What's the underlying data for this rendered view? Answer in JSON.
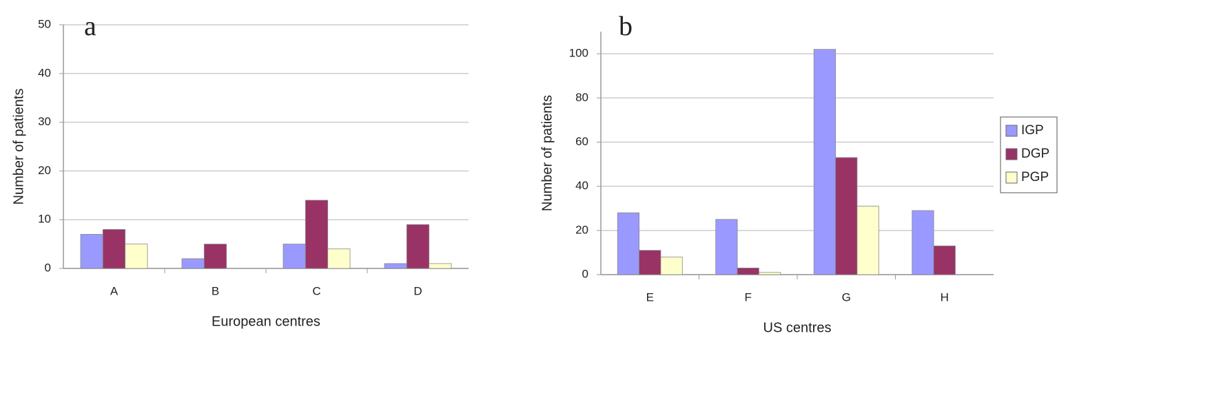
{
  "chart_data": [
    {
      "type": "bar",
      "annotation": "a",
      "x_label": "European centres",
      "y_label": "Number of patients",
      "categories": [
        "A",
        "B",
        "C",
        "D"
      ],
      "series": [
        {
          "color": "#9999ff",
          "values": [
            7,
            2,
            5,
            1
          ]
        },
        {
          "color": "#993366",
          "values": [
            8,
            5,
            14,
            9
          ]
        },
        {
          "color": "#ffffcc",
          "values": [
            5,
            0,
            4,
            1
          ]
        }
      ],
      "ylim": [
        0,
        50
      ],
      "yticks": [
        0,
        10,
        20,
        30,
        40,
        50
      ],
      "grid": true
    },
    {
      "type": "bar",
      "annotation": "b",
      "x_label": "US centres",
      "y_label": "Number of patients",
      "categories": [
        "E",
        "F",
        "G",
        "H"
      ],
      "series": [
        {
          "name": "IGP",
          "color": "#9999ff",
          "values": [
            28,
            25,
            102,
            29
          ]
        },
        {
          "name": "DGP",
          "color": "#993366",
          "values": [
            11,
            3,
            53,
            13
          ]
        },
        {
          "name": "PGP",
          "color": "#ffffcc",
          "values": [
            8,
            1,
            31,
            0
          ]
        }
      ],
      "ylim": [
        0,
        110
      ],
      "yticks": [
        0,
        20,
        40,
        60,
        80,
        100
      ],
      "grid": true,
      "legend": "right"
    }
  ]
}
